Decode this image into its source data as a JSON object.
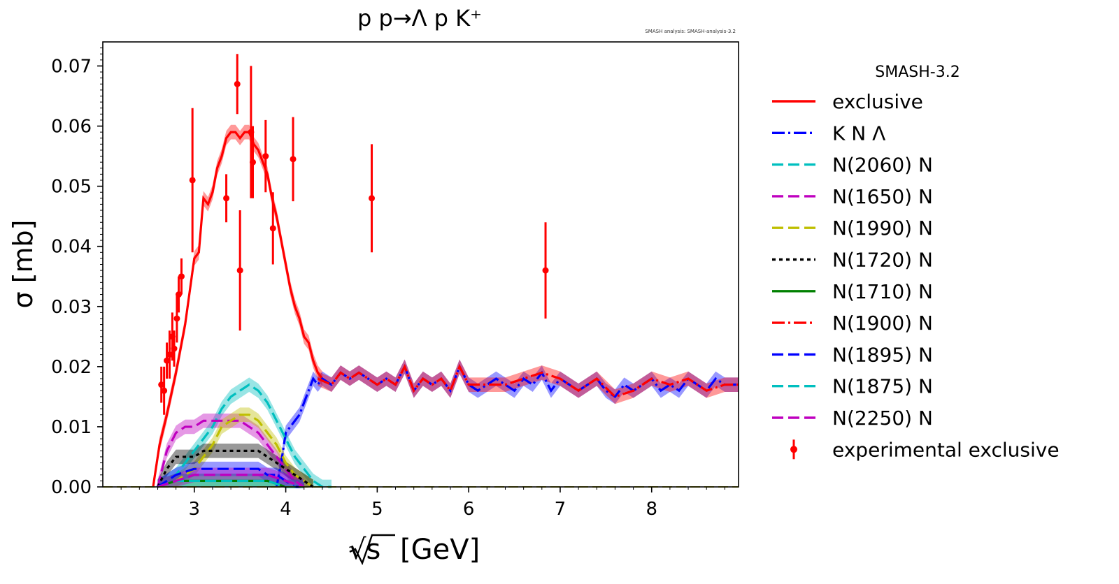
{
  "chart_data": {
    "type": "line",
    "title": "p p→Λ p K⁺",
    "watermark": "SMASH analysis: SMASH-analysis-3.2",
    "xlabel": "[GeV]",
    "xlabel_sqrt": "√s",
    "ylabel": "σ [mb]",
    "xlim": [
      2.0,
      8.95
    ],
    "ylim": [
      0.0,
      0.074
    ],
    "x_ticks": [
      3,
      4,
      5,
      6,
      7,
      8
    ],
    "x_tick_labels": [
      "3",
      "4",
      "5",
      "6",
      "7",
      "8"
    ],
    "y_ticks": [
      0.0,
      0.01,
      0.02,
      0.03,
      0.04,
      0.05,
      0.06,
      0.07
    ],
    "y_tick_labels": [
      "0.00",
      "0.01",
      "0.02",
      "0.03",
      "0.04",
      "0.05",
      "0.06",
      "0.07"
    ],
    "legend_title": "SMASH-3.2",
    "legend_placement": "right, outside plot",
    "grid": false,
    "series": [
      {
        "name": "exclusive",
        "color": "#ff0000",
        "style": "solid",
        "x": [
          2.55,
          2.62,
          2.7,
          2.8,
          2.9,
          3.0,
          3.05,
          3.1,
          3.15,
          3.2,
          3.25,
          3.3,
          3.35,
          3.4,
          3.45,
          3.5,
          3.55,
          3.6,
          3.65,
          3.7,
          3.75,
          3.8,
          3.85,
          3.9,
          3.95,
          4.0,
          4.05,
          4.1,
          4.15,
          4.2,
          4.25,
          4.3,
          4.35,
          4.4
        ],
        "y": [
          0.0,
          0.007,
          0.012,
          0.019,
          0.027,
          0.038,
          0.039,
          0.048,
          0.047,
          0.049,
          0.053,
          0.055,
          0.058,
          0.059,
          0.059,
          0.058,
          0.059,
          0.059,
          0.057,
          0.056,
          0.054,
          0.052,
          0.048,
          0.045,
          0.041,
          0.037,
          0.033,
          0.03,
          0.028,
          0.025,
          0.024,
          0.021,
          0.019,
          0.018
        ]
      },
      {
        "name": "K N Λ",
        "color": "#0000ff",
        "style": "dashdot",
        "x": [
          3.9,
          3.95,
          4.0,
          4.05,
          4.1,
          4.15,
          4.2,
          4.25,
          4.3,
          4.35,
          4.4,
          4.5,
          4.6,
          4.7,
          4.8,
          4.9,
          5.0,
          5.1,
          5.2,
          5.3,
          5.4,
          5.5,
          5.6,
          5.7,
          5.8,
          5.9,
          6.0,
          6.1,
          6.2,
          6.3,
          6.4,
          6.5,
          6.6,
          6.7,
          6.8,
          6.9,
          7.0,
          7.1,
          7.2,
          7.3,
          7.4,
          7.5,
          7.6,
          7.7,
          7.8,
          7.9,
          8.0,
          8.1,
          8.2,
          8.3,
          8.4,
          8.5,
          8.6,
          8.7,
          8.8,
          8.95
        ],
        "y": [
          0.0,
          0.004,
          0.009,
          0.01,
          0.011,
          0.012,
          0.014,
          0.016,
          0.018,
          0.017,
          0.018,
          0.017,
          0.019,
          0.018,
          0.019,
          0.018,
          0.017,
          0.018,
          0.017,
          0.02,
          0.016,
          0.018,
          0.017,
          0.018,
          0.016,
          0.02,
          0.017,
          0.016,
          0.017,
          0.018,
          0.017,
          0.016,
          0.018,
          0.017,
          0.019,
          0.016,
          0.018,
          0.017,
          0.016,
          0.017,
          0.018,
          0.016,
          0.015,
          0.017,
          0.016,
          0.017,
          0.018,
          0.016,
          0.017,
          0.016,
          0.018,
          0.017,
          0.016,
          0.018,
          0.017,
          0.017
        ]
      },
      {
        "name": "N(2060) N",
        "color": "#00bfbf",
        "style": "dashed",
        "x": [
          2.6,
          2.8,
          3.0,
          3.2,
          3.3,
          3.4,
          3.5,
          3.6,
          3.7,
          3.8,
          3.9,
          4.0,
          4.1,
          4.2,
          4.3,
          4.4,
          4.5
        ],
        "y": [
          0.0,
          0.002,
          0.006,
          0.01,
          0.013,
          0.015,
          0.016,
          0.017,
          0.016,
          0.014,
          0.011,
          0.008,
          0.005,
          0.003,
          0.001,
          0.0,
          0.0
        ]
      },
      {
        "name": "N(1650) N",
        "color": "#bf00bf",
        "style": "dashed",
        "x": [
          2.6,
          2.7,
          2.8,
          2.9,
          3.0,
          3.1,
          3.2,
          3.3,
          3.4,
          3.5,
          3.6,
          3.7,
          3.8,
          3.9,
          4.0,
          4.1,
          4.2
        ],
        "y": [
          0.0,
          0.006,
          0.009,
          0.01,
          0.01,
          0.011,
          0.011,
          0.011,
          0.011,
          0.011,
          0.01,
          0.009,
          0.007,
          0.005,
          0.003,
          0.001,
          0.0
        ]
      },
      {
        "name": "N(1990) N",
        "color": "#bfbf00",
        "style": "dashed",
        "x": [
          2.6,
          2.8,
          3.0,
          3.2,
          3.3,
          3.4,
          3.5,
          3.6,
          3.7,
          3.8,
          3.9,
          4.0,
          4.1,
          4.2,
          4.3
        ],
        "y": [
          0.0,
          0.001,
          0.003,
          0.007,
          0.01,
          0.011,
          0.012,
          0.012,
          0.011,
          0.009,
          0.007,
          0.004,
          0.002,
          0.001,
          0.0
        ]
      },
      {
        "name": "N(1720) N",
        "color": "#000000",
        "style": "dotted",
        "x": [
          2.6,
          2.7,
          2.8,
          2.9,
          3.0,
          3.1,
          3.2,
          3.3,
          3.4,
          3.5,
          3.6,
          3.7,
          3.8,
          3.9,
          4.0,
          4.1,
          4.2,
          4.3
        ],
        "y": [
          0.0,
          0.003,
          0.005,
          0.005,
          0.005,
          0.006,
          0.006,
          0.006,
          0.006,
          0.006,
          0.006,
          0.006,
          0.005,
          0.004,
          0.003,
          0.002,
          0.001,
          0.0
        ]
      },
      {
        "name": "N(1710) N",
        "color": "#008000",
        "style": "solid",
        "x": [
          2.6,
          2.8,
          3.0,
          3.2,
          3.4,
          3.6,
          3.8,
          4.0,
          4.2
        ],
        "y": [
          0.0,
          0.001,
          0.001,
          0.001,
          0.001,
          0.001,
          0.001,
          0.0,
          0.0
        ]
      },
      {
        "name": "N(1900) N",
        "color": "#ff0000",
        "style": "dashdot",
        "x": [
          4.35,
          4.5,
          4.6,
          4.7,
          4.8,
          4.9,
          5.0,
          5.1,
          5.2,
          5.3,
          5.4,
          5.5,
          5.6,
          5.7,
          5.8,
          5.9,
          6.0,
          6.2,
          6.4,
          6.6,
          6.8,
          7.0,
          7.2,
          7.4,
          7.6,
          7.8,
          8.0,
          8.2,
          8.4,
          8.6,
          8.8,
          8.95
        ],
        "y": [
          0.018,
          0.017,
          0.019,
          0.018,
          0.019,
          0.018,
          0.017,
          0.018,
          0.017,
          0.02,
          0.016,
          0.018,
          0.017,
          0.018,
          0.016,
          0.02,
          0.017,
          0.017,
          0.017,
          0.018,
          0.019,
          0.018,
          0.016,
          0.018,
          0.015,
          0.016,
          0.018,
          0.017,
          0.018,
          0.016,
          0.017,
          0.017
        ]
      },
      {
        "name": "N(1895) N",
        "color": "#0000ff",
        "style": "dashed",
        "x": [
          2.6,
          2.8,
          3.0,
          3.2,
          3.3,
          3.4,
          3.5,
          3.6,
          3.7,
          3.8,
          3.9,
          4.0,
          4.1,
          4.2
        ],
        "y": [
          0.0,
          0.002,
          0.003,
          0.003,
          0.003,
          0.003,
          0.003,
          0.003,
          0.003,
          0.002,
          0.002,
          0.001,
          0.0,
          0.0
        ]
      },
      {
        "name": "N(1875) N",
        "color": "#00bfbf",
        "style": "dashed",
        "x": [
          2.6,
          2.8,
          3.0,
          3.2,
          3.4,
          3.6,
          3.8,
          4.0,
          4.2
        ],
        "y": [
          0.0,
          0.001,
          0.001,
          0.001,
          0.001,
          0.001,
          0.001,
          0.0,
          0.0
        ]
      },
      {
        "name": "N(2250) N",
        "color": "#bf00bf",
        "style": "dashed",
        "x": [
          2.6,
          2.8,
          3.0,
          3.2,
          3.4,
          3.6,
          3.8,
          4.0,
          4.2
        ],
        "y": [
          0.0,
          0.001,
          0.002,
          0.002,
          0.002,
          0.002,
          0.002,
          0.001,
          0.0
        ]
      }
    ],
    "experimental": {
      "name": "experimental exclusive",
      "color": "#ff0000",
      "points": [
        {
          "x": 2.64,
          "y": 0.017,
          "err": 0.003
        },
        {
          "x": 2.67,
          "y": 0.016,
          "err": 0.004
        },
        {
          "x": 2.7,
          "y": 0.021,
          "err": 0.003
        },
        {
          "x": 2.73,
          "y": 0.022,
          "err": 0.004
        },
        {
          "x": 2.76,
          "y": 0.025,
          "err": 0.004
        },
        {
          "x": 2.78,
          "y": 0.023,
          "err": 0.003
        },
        {
          "x": 2.81,
          "y": 0.028,
          "err": 0.004
        },
        {
          "x": 2.83,
          "y": 0.032,
          "err": 0.003
        },
        {
          "x": 2.86,
          "y": 0.035,
          "err": 0.003
        },
        {
          "x": 2.98,
          "y": 0.051,
          "err": 0.012
        },
        {
          "x": 3.35,
          "y": 0.048,
          "err": 0.004
        },
        {
          "x": 3.47,
          "y": 0.067,
          "err": 0.005
        },
        {
          "x": 3.5,
          "y": 0.036,
          "err": 0.01
        },
        {
          "x": 3.62,
          "y": 0.059,
          "err": 0.011
        },
        {
          "x": 3.64,
          "y": 0.054,
          "err": 0.006
        },
        {
          "x": 3.78,
          "y": 0.055,
          "err": 0.006
        },
        {
          "x": 3.86,
          "y": 0.043,
          "err": 0.006
        },
        {
          "x": 4.08,
          "y": 0.0545,
          "err": 0.007
        },
        {
          "x": 4.94,
          "y": 0.048,
          "err": 0.009
        },
        {
          "x": 6.84,
          "y": 0.036,
          "err": 0.008
        }
      ]
    }
  }
}
